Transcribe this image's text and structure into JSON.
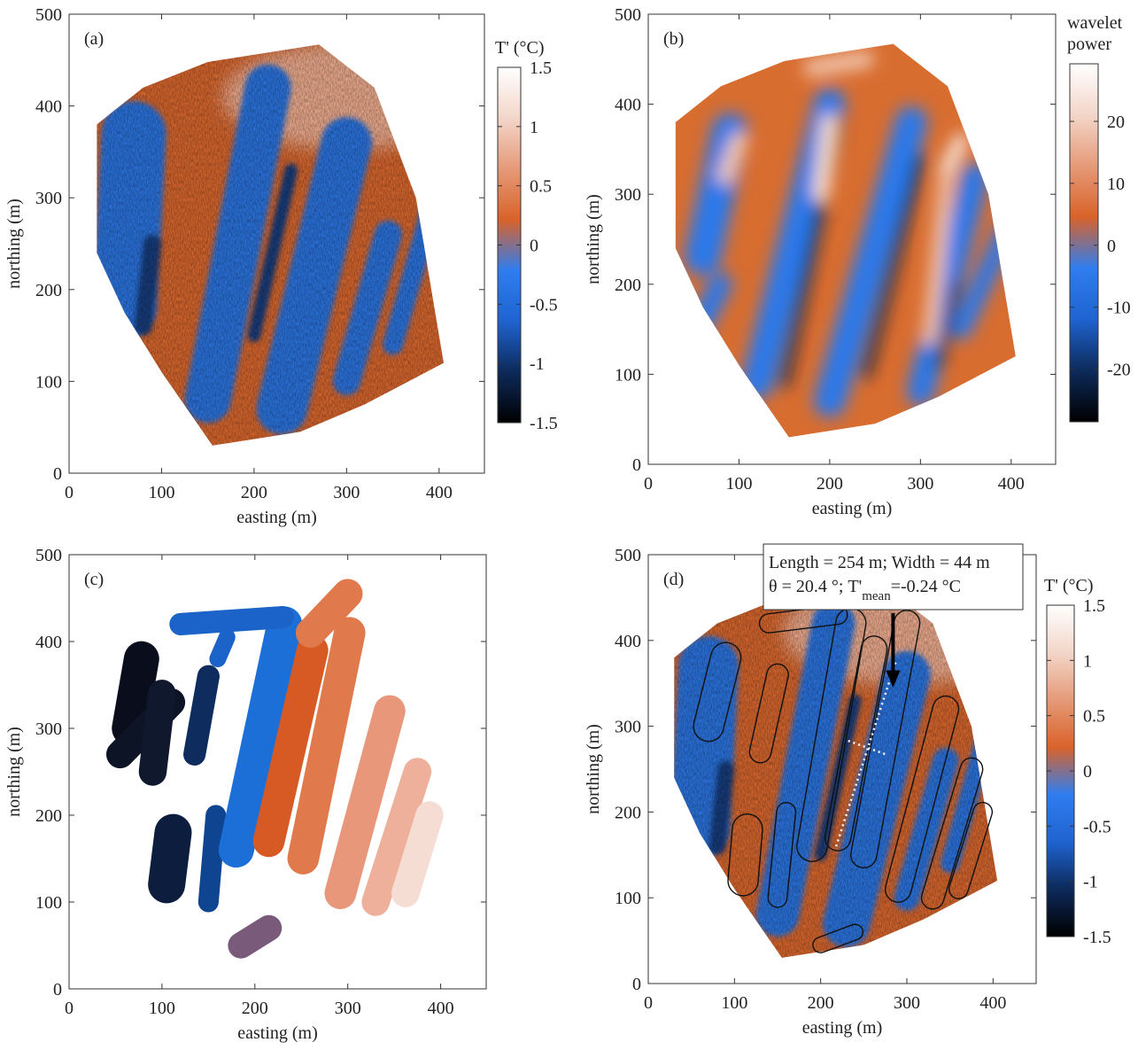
{
  "chart_data": [
    {
      "type": "map",
      "panel_label": "(a)",
      "xlabel": "easting (m)",
      "ylabel": "northing (m)",
      "xlim": [
        0,
        449
      ],
      "ylim": [
        0,
        500
      ],
      "xticks": [
        0,
        100,
        200,
        300,
        400
      ],
      "yticks": [
        0,
        100,
        200,
        300,
        400,
        500
      ],
      "colorbar": {
        "label": [
          "T' (°C)"
        ],
        "lim": [
          -1.5,
          1.5
        ],
        "ticks": [
          -1.5,
          -1,
          -0.5,
          0,
          0.5,
          1,
          1.5
        ],
        "colors": [
          "#000000",
          "#0d2a5a",
          "#1f63d0",
          "#2f7df0",
          "#d9622a",
          "#e59a78",
          "#f3d6c9",
          "#ffffff"
        ]
      }
    },
    {
      "type": "map",
      "panel_label": "(b)",
      "xlabel": "easting (m)",
      "ylabel": "northing (m)",
      "xlim": [
        0,
        449
      ],
      "ylim": [
        0,
        500
      ],
      "xticks": [
        0,
        100,
        200,
        300,
        400
      ],
      "yticks": [
        0,
        100,
        200,
        300,
        400,
        500
      ],
      "colorbar": {
        "label": [
          "wavelet",
          "power"
        ],
        "lim": [
          -28.5,
          29.3
        ],
        "ticks": [
          -20,
          -10,
          0,
          10,
          20
        ],
        "colors": [
          "#000000",
          "#0d2a5a",
          "#1f63d0",
          "#2f7df0",
          "#d9622a",
          "#e59a78",
          "#f3d6c9",
          "#ffffff"
        ]
      }
    },
    {
      "type": "map",
      "panel_label": "(c)",
      "xlabel": "easting (m)",
      "ylabel": "northing (m)",
      "xlim": [
        0,
        449
      ],
      "ylim": [
        0,
        500
      ],
      "xticks": [
        0,
        100,
        200,
        300,
        400
      ],
      "yticks": [
        0,
        100,
        200,
        300,
        400,
        500
      ]
    },
    {
      "type": "map",
      "panel_label": "(d)",
      "xlabel": "easting (m)",
      "ylabel": "northing (m)",
      "xlim": [
        0,
        450
      ],
      "ylim": [
        0,
        500
      ],
      "xticks": [
        0,
        100,
        200,
        300,
        400
      ],
      "yticks": [
        0,
        100,
        200,
        300,
        400,
        500
      ],
      "colorbar": {
        "label": [
          "T' (°C)"
        ],
        "lim": [
          -1.5,
          1.5
        ],
        "ticks": [
          -1.5,
          -1,
          -0.5,
          0,
          0.5,
          1,
          1.5
        ],
        "colors": [
          "#000000",
          "#0d2a5a",
          "#1f63d0",
          "#2f7df0",
          "#d9622a",
          "#e59a78",
          "#f3d6c9",
          "#ffffff"
        ]
      },
      "annotation": {
        "line1": "Length = 254 m; Width = 44 m",
        "line2": [
          "θ = 20.4 °; T'",
          "mean",
          "=-0.24 °C"
        ]
      }
    }
  ]
}
